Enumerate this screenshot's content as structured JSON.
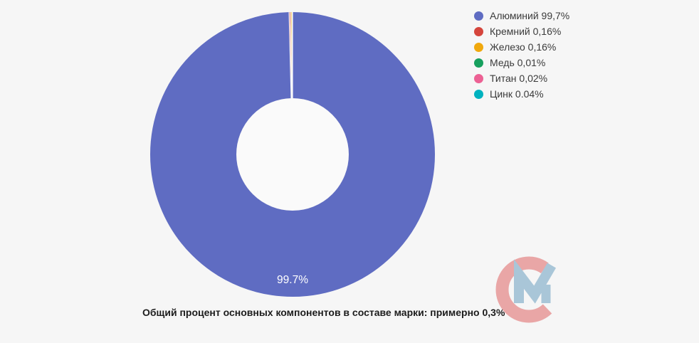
{
  "page": {
    "background_color": "#f6f6f6"
  },
  "chart_data": {
    "type": "pie",
    "subtype": "donut",
    "categories": [
      "Алюминий",
      "Кремний",
      "Железо",
      "Медь",
      "Титан",
      "Цинк"
    ],
    "values": [
      99.7,
      0.16,
      0.16,
      0.01,
      0.02,
      0.04
    ],
    "colors": [
      "#5f6cc2",
      "#d5453c",
      "#f0a80d",
      "#17a05e",
      "#ec6194",
      "#00b2bf"
    ],
    "start_angle_deg": -90,
    "direction": "clockwise",
    "inner_radius_ratio": 0.395,
    "separator_color": "#fafafa",
    "hole_color": "#fafafa",
    "center_slice_label": "99.7%",
    "legend": {
      "position": "right",
      "items": [
        {
          "label": "Алюминий 99,7%",
          "color": "#5f6cc2"
        },
        {
          "label": "Кремний 0,16%",
          "color": "#d5453c"
        },
        {
          "label": "Железо 0,16%",
          "color": "#f0a80d"
        },
        {
          "label": "Медь 0,01%",
          "color": "#17a05e"
        },
        {
          "label": "Титан 0,02%",
          "color": "#ec6194"
        },
        {
          "label": "Цинк 0.04%",
          "color": "#00b2bf"
        }
      ]
    },
    "caption": "Общий процент основных компонентов в составе марки: примерно 0,3%"
  },
  "logo": {
    "description": "CM watermark logo",
    "letter_c_color": "#e9a6a6",
    "letter_m_color": "#a9c6d8"
  }
}
